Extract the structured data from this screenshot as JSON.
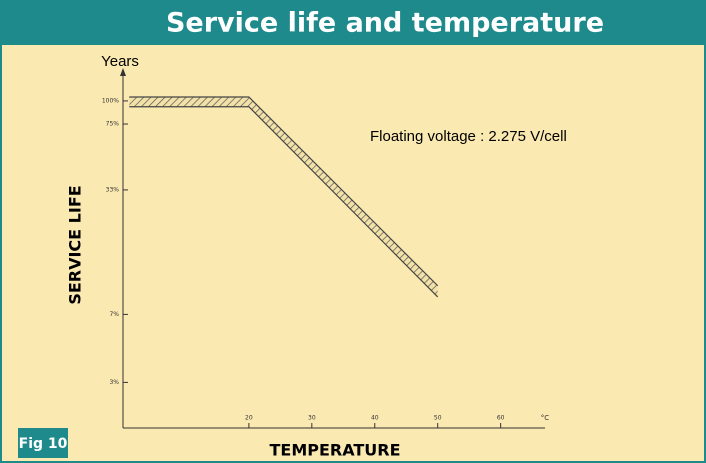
{
  "chart_data": {
    "type": "band",
    "title": "Service life and temperature",
    "y_unit": "Years",
    "ylabel": "SERVICE LIFE",
    "xlabel": "TEMPERATURE",
    "x_unit": "°C",
    "annotation": "Floating voltage : 2.275 V/cell",
    "figure_label": "Fig 10",
    "x": [
      1,
      20,
      50
    ],
    "upper": [
      105,
      105,
      10
    ],
    "lower": [
      93,
      93,
      8.7
    ],
    "color": "#444444",
    "fill": "#d9c894",
    "xlim": [
      0,
      68
    ],
    "xticks": [
      20,
      30,
      40,
      50,
      60
    ],
    "ylim": [
      1.7,
      147
    ],
    "yscale": "log",
    "yticks": [
      {
        "value": 100,
        "label": "100%"
      },
      {
        "value": 75,
        "label": "75%"
      },
      {
        "value": 33,
        "label": "33%"
      },
      {
        "value": 7,
        "label": "7%"
      },
      {
        "value": 3,
        "label": "3%"
      }
    ]
  }
}
